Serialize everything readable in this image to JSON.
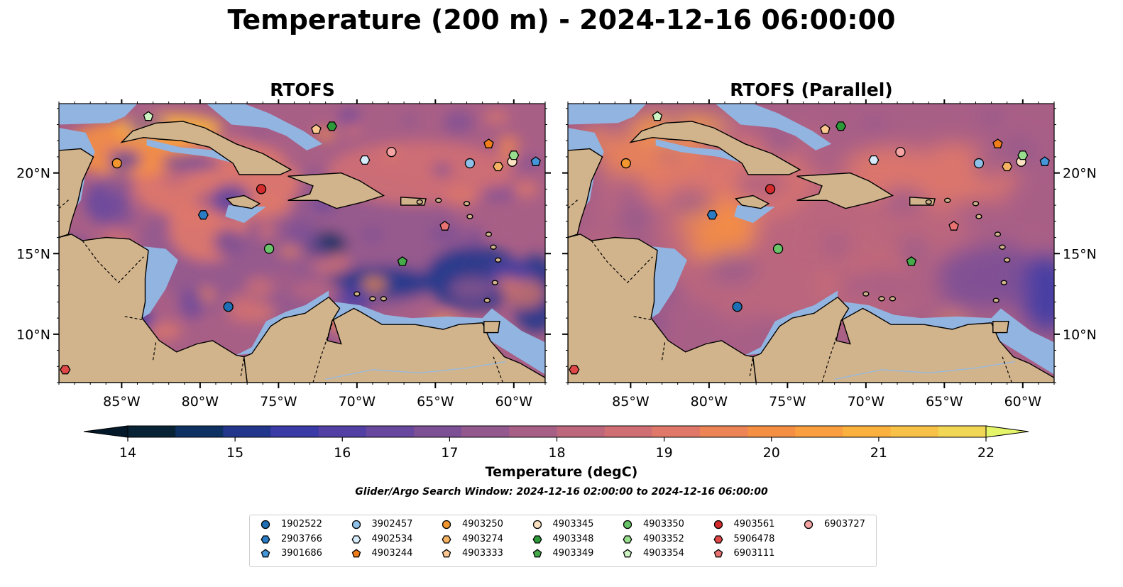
{
  "title": "Temperature (200 m) - 2024-12-16 06:00:00",
  "panels": [
    {
      "title": "RTOFS",
      "variant": "rtofs"
    },
    {
      "title": "RTOFS (Parallel)",
      "variant": "parallel"
    }
  ],
  "map": {
    "lon_range": [
      -89,
      -58
    ],
    "lat_range": [
      7.0,
      24.3
    ],
    "lon_ticks": [
      -85,
      -80,
      -75,
      -70,
      -65,
      -60
    ],
    "lon_tick_labels": [
      "85°W",
      "80°W",
      "75°W",
      "70°W",
      "65°W",
      "60°W"
    ],
    "lat_ticks": [
      10,
      15,
      20
    ],
    "lat_tick_labels": [
      "10°N",
      "15°N",
      "20°N"
    ],
    "colors": {
      "land": "#d2b48c",
      "shallow": "#92b4e0",
      "deep_land_side": "#06233a",
      "coast": "#000000",
      "river": "#9bb9d8"
    }
  },
  "colorbar": {
    "label": "Temperature (degC)",
    "min": 14,
    "max": 22,
    "step": 0.5,
    "ticks": [
      14,
      15,
      16,
      17,
      18,
      19,
      20,
      21,
      22
    ],
    "tick_labels": [
      "14",
      "15",
      "16",
      "17",
      "18",
      "19",
      "20",
      "21",
      "22"
    ],
    "colors": [
      "#072335",
      "#0d3163",
      "#22378c",
      "#3a3ba6",
      "#5240a4",
      "#68489e",
      "#7d5096",
      "#93598e",
      "#a85f86",
      "#bd677d",
      "#d06f73",
      "#e0786a",
      "#ec8456",
      "#f58f44",
      "#fa9f40",
      "#fbb13d",
      "#f7c247",
      "#f2d756"
    ],
    "under_color": "#03192a",
    "over_color": "#e5f56a"
  },
  "search_window": "Glider/Argo Search Window: 2024-12-16 02:00:00 to 2024-12-16 06:00:00",
  "legend": {
    "items": [
      {
        "id": "1902522",
        "marker": "circle",
        "color": "#1f6fb4"
      },
      {
        "id": "2903766",
        "marker": "hexagon",
        "color": "#2a7cc4"
      },
      {
        "id": "3901686",
        "marker": "pentagon",
        "color": "#4596d8"
      },
      {
        "id": "3902457",
        "marker": "circle",
        "color": "#8ec0e8"
      },
      {
        "id": "4902534",
        "marker": "hexagon",
        "color": "#d6ebfb"
      },
      {
        "id": "4903244",
        "marker": "pentagon",
        "color": "#ef7d1a"
      },
      {
        "id": "4903250",
        "marker": "circle",
        "color": "#f2962f"
      },
      {
        "id": "4903274",
        "marker": "hexagon",
        "color": "#f6b363"
      },
      {
        "id": "4903333",
        "marker": "pentagon",
        "color": "#fcc890"
      },
      {
        "id": "4903345",
        "marker": "circle",
        "color": "#fde2c2"
      },
      {
        "id": "4903348",
        "marker": "hexagon",
        "color": "#2c9a38"
      },
      {
        "id": "4903349",
        "marker": "pentagon",
        "color": "#45aa4a"
      },
      {
        "id": "4903350",
        "marker": "circle",
        "color": "#6ac56a"
      },
      {
        "id": "4903352",
        "marker": "hexagon",
        "color": "#98de8e"
      },
      {
        "id": "4903354",
        "marker": "pentagon",
        "color": "#cdf4c2"
      },
      {
        "id": "4903561",
        "marker": "circle",
        "color": "#d42c2c"
      },
      {
        "id": "5906478",
        "marker": "hexagon",
        "color": "#e04848"
      },
      {
        "id": "6903111",
        "marker": "pentagon",
        "color": "#e87272"
      },
      {
        "id": "6903727",
        "marker": "circle",
        "color": "#f5a3a3"
      }
    ]
  },
  "observations": [
    {
      "id": "4903354",
      "lon": -83.3,
      "lat": 23.5
    },
    {
      "id": "4903250",
      "lon": -85.3,
      "lat": 20.6
    },
    {
      "id": "4903561",
      "lon": -76.1,
      "lat": 19.0
    },
    {
      "id": "2903766",
      "lon": -79.8,
      "lat": 17.4
    },
    {
      "id": "4903350",
      "lon": -75.6,
      "lat": 15.3
    },
    {
      "id": "1902522",
      "lon": -78.2,
      "lat": 11.7
    },
    {
      "id": "4903333",
      "lon": -72.6,
      "lat": 22.7
    },
    {
      "id": "4903348",
      "lon": -71.6,
      "lat": 22.9
    },
    {
      "id": "4902534",
      "lon": -69.5,
      "lat": 20.8
    },
    {
      "id": "6903727",
      "lon": -67.8,
      "lat": 21.3
    },
    {
      "id": "3902457",
      "lon": -62.8,
      "lat": 20.6
    },
    {
      "id": "6903111",
      "lon": -64.4,
      "lat": 16.7
    },
    {
      "id": "4903349",
      "lon": -67.1,
      "lat": 14.5
    },
    {
      "id": "4903244",
      "lon": -61.6,
      "lat": 21.8
    },
    {
      "id": "4903274",
      "lon": -61.0,
      "lat": 20.4
    },
    {
      "id": "4903345",
      "lon": -60.1,
      "lat": 20.7
    },
    {
      "id": "4903352",
      "lon": -60.0,
      "lat": 21.1
    },
    {
      "id": "3901686",
      "lon": -58.6,
      "lat": 20.7
    },
    {
      "id": "5906478",
      "lon": -88.6,
      "lat": 7.8
    }
  ]
}
